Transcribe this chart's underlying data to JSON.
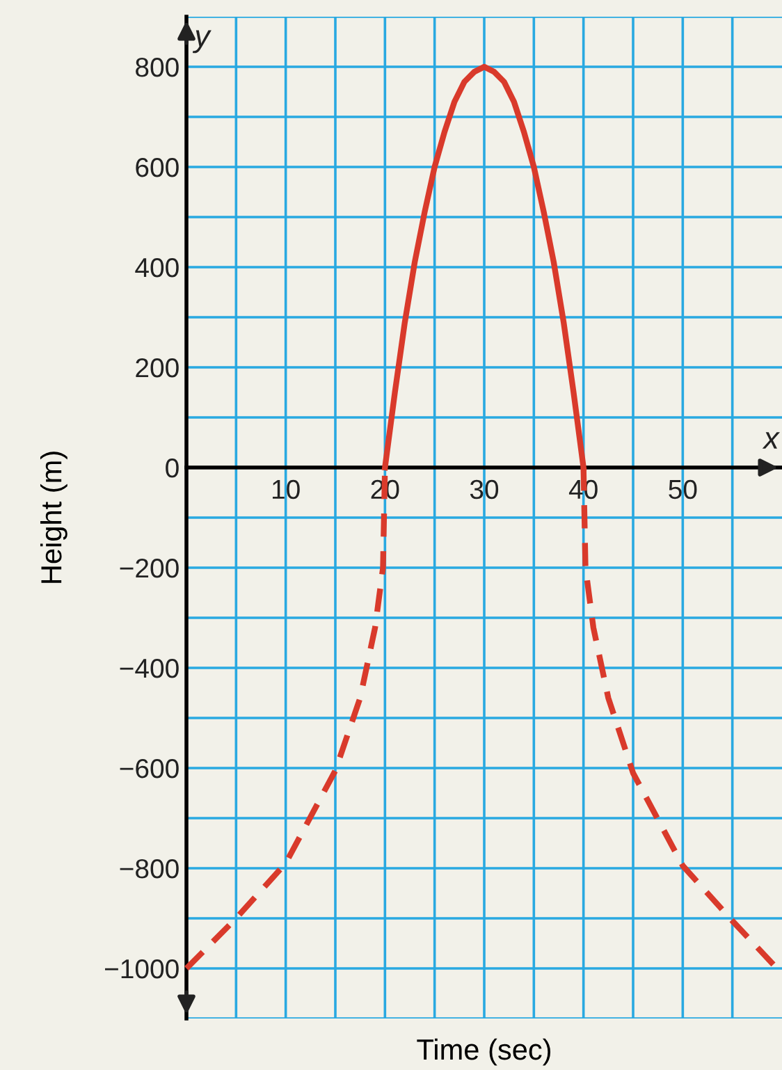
{
  "chart_data": {
    "type": "line",
    "xlabel": "Time (sec)",
    "ylabel": "Height (m)",
    "annotations": [
      "x",
      "y"
    ],
    "series": [
      {
        "color": "#d93a2b",
        "line_style": "dashed",
        "x": [
          0,
          5,
          10,
          15,
          17.5,
          19,
          19.8,
          20
        ],
        "values": [
          -1000,
          -900,
          -790,
          -605,
          -460,
          -320,
          -200,
          0
        ]
      },
      {
        "color": "#d93a2b",
        "line_style": "solid",
        "x": [
          20,
          21,
          22,
          23,
          24,
          25,
          26,
          27,
          28,
          29,
          30,
          31,
          32,
          33,
          34,
          35,
          36,
          37,
          38,
          39,
          40
        ],
        "values": [
          0,
          150,
          290,
          410,
          510,
          600,
          670,
          730,
          770,
          790,
          800,
          790,
          770,
          730,
          670,
          600,
          510,
          410,
          290,
          150,
          0
        ]
      },
      {
        "color": "#d93a2b",
        "line_style": "dashed",
        "x": [
          40,
          40.2,
          41,
          42.5,
          45,
          50,
          55,
          59.5
        ],
        "values": [
          0,
          -200,
          -320,
          -460,
          -610,
          -795,
          -905,
          -1000
        ]
      }
    ],
    "xlim": [
      0,
      60
    ],
    "ylim": [
      -1100,
      900
    ],
    "xticks": [
      {
        "value": 5,
        "label": null
      },
      10,
      {
        "value": 15,
        "label": null
      },
      20,
      {
        "value": 25,
        "label": null
      },
      30,
      {
        "value": 35,
        "label": null
      },
      40,
      {
        "value": 45,
        "label": null
      },
      50,
      {
        "value": 55,
        "label": null
      }
    ],
    "yticks": [
      {
        "value": -1100,
        "label": null
      },
      {
        "value": -1000,
        "label": "−1000"
      },
      {
        "value": -900,
        "label": null
      },
      {
        "value": -800,
        "label": "−800"
      },
      {
        "value": -700,
        "label": null
      },
      {
        "value": -600,
        "label": "−600"
      },
      {
        "value": -500,
        "label": null
      },
      {
        "value": -400,
        "label": "−400"
      },
      {
        "value": -300,
        "label": null
      },
      {
        "value": -200,
        "label": "−200"
      },
      {
        "value": -100,
        "label": null
      },
      0,
      {
        "value": 100,
        "label": null
      },
      200,
      {
        "value": 300,
        "label": null
      },
      400,
      {
        "value": 500,
        "label": null
      },
      600,
      {
        "value": 700,
        "label": null
      },
      800,
      {
        "value": 900,
        "label": null
      }
    ],
    "grid": true,
    "marker": "none"
  }
}
